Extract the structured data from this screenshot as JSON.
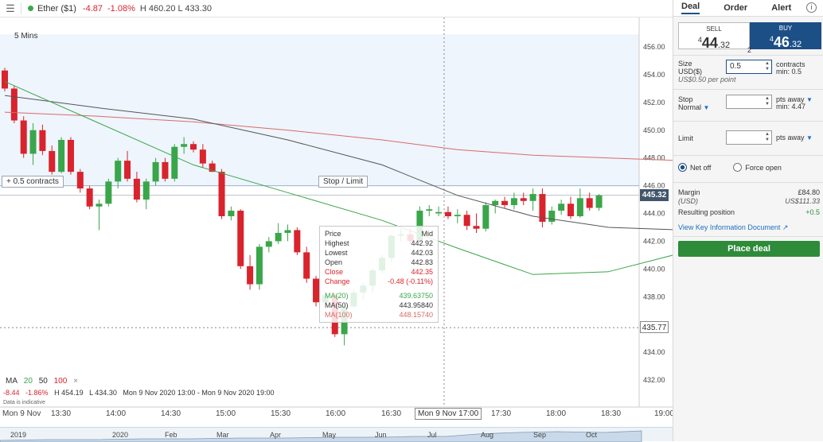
{
  "header": {
    "instrument": "Ether ($1)",
    "change": "-4.87",
    "change_pct": "-1.08%",
    "high_low": "H 460.20 L 433.30"
  },
  "chart": {
    "timeframe": "5 Mins",
    "position_pill": "+ 0.5 contracts",
    "stop_limit_pill": "Stop / Limit",
    "current_price_tag": "445.32",
    "cursor_price_tag": "435.77",
    "cursor_time_tag": "Mon 9 Nov 17:00",
    "colors": {
      "up": "#3aa64a",
      "down": "#d9232d",
      "ma20": "#3aa64a",
      "ma50": "#555555",
      "ma100": "#d96a6a"
    }
  },
  "chart_data": {
    "type": "candlestick",
    "y_ticks": [
      "456.00",
      "454.00",
      "452.00",
      "450.00",
      "448.00",
      "446.00",
      "444.00",
      "442.00",
      "440.00",
      "438.00",
      "436.00",
      "434.00",
      "432.00"
    ],
    "ylim": [
      431.5,
      457.0
    ],
    "x_ticks": [
      "Mon 9 Nov",
      "13:30",
      "14:00",
      "14:30",
      "15:00",
      "15:30",
      "16:00",
      "16:30",
      "17:30",
      "18:00",
      "18:30",
      "19:00"
    ],
    "candles": [
      [
        454.3,
        454.5,
        452.8,
        453.0
      ],
      [
        453.0,
        453.2,
        450.5,
        450.7
      ],
      [
        450.7,
        451.0,
        448.0,
        448.3
      ],
      [
        448.3,
        450.5,
        447.5,
        450.0
      ],
      [
        450.0,
        450.4,
        448.2,
        448.5
      ],
      [
        448.5,
        448.9,
        446.8,
        447.0
      ],
      [
        447.0,
        449.5,
        446.9,
        449.3
      ],
      [
        449.3,
        449.5,
        446.8,
        447.0
      ],
      [
        447.0,
        447.2,
        445.5,
        445.8
      ],
      [
        445.8,
        446.0,
        444.3,
        444.5
      ],
      [
        444.5,
        445.0,
        442.8,
        444.7
      ],
      [
        444.7,
        446.5,
        444.5,
        446.3
      ],
      [
        446.3,
        448.0,
        445.8,
        447.8
      ],
      [
        447.8,
        448.5,
        446.3,
        446.5
      ],
      [
        446.5,
        447.0,
        444.8,
        445.0
      ],
      [
        445.0,
        446.5,
        444.3,
        446.3
      ],
      [
        446.3,
        448.0,
        446.0,
        447.7
      ],
      [
        447.7,
        448.0,
        446.3,
        446.5
      ],
      [
        446.5,
        449.0,
        446.3,
        448.8
      ],
      [
        448.8,
        449.5,
        448.3,
        449.0
      ],
      [
        449.0,
        449.2,
        448.4,
        448.6
      ],
      [
        448.6,
        449.0,
        447.3,
        447.6
      ],
      [
        447.6,
        447.8,
        447.0,
        447.0
      ],
      [
        447.0,
        447.2,
        443.6,
        443.8
      ],
      [
        443.8,
        444.5,
        443.5,
        444.2
      ],
      [
        444.2,
        444.3,
        440.0,
        440.2
      ],
      [
        440.2,
        441.0,
        438.5,
        438.9
      ],
      [
        438.9,
        441.8,
        438.5,
        441.6
      ],
      [
        441.6,
        442.3,
        441.2,
        442.0
      ],
      [
        442.0,
        443.3,
        441.8,
        442.6
      ],
      [
        442.6,
        443.2,
        442.0,
        442.8
      ],
      [
        442.8,
        443.0,
        441.0,
        441.2
      ],
      [
        441.2,
        441.6,
        439.0,
        439.3
      ],
      [
        439.3,
        439.5,
        437.3,
        437.6
      ],
      [
        437.6,
        438.3,
        437.0,
        438.1
      ],
      [
        438.1,
        438.3,
        435.1,
        435.3
      ],
      [
        435.3,
        437.5,
        434.5,
        437.3
      ],
      [
        437.3,
        438.5,
        437.2,
        438.3
      ],
      [
        438.3,
        439.0,
        437.8,
        438.8
      ],
      [
        438.8,
        440.0,
        438.3,
        439.9
      ],
      [
        439.9,
        441.0,
        439.7,
        440.8
      ],
      [
        440.8,
        442.5,
        440.5,
        442.4
      ],
      [
        442.4,
        442.9,
        442.0,
        442.5
      ],
      [
        442.5,
        442.9,
        441.8,
        442.0
      ],
      [
        442.0,
        444.5,
        441.8,
        444.2
      ],
      [
        444.2,
        444.6,
        443.8,
        444.3
      ],
      [
        444.0,
        444.5,
        443.8,
        444.1
      ],
      [
        444.1,
        444.5,
        443.6,
        443.8
      ],
      [
        443.8,
        444.3,
        443.3,
        443.9
      ],
      [
        443.9,
        444.2,
        442.8,
        443.1
      ],
      [
        443.1,
        444.0,
        442.6,
        442.9
      ],
      [
        442.9,
        444.8,
        442.7,
        444.6
      ],
      [
        444.6,
        445.0,
        444.0,
        444.9
      ],
      [
        444.9,
        445.2,
        444.4,
        444.6
      ],
      [
        444.6,
        445.5,
        444.3,
        445.1
      ],
      [
        445.1,
        445.5,
        444.6,
        444.9
      ],
      [
        444.9,
        445.8,
        444.2,
        445.4
      ],
      [
        445.4,
        445.8,
        443.0,
        443.4
      ],
      [
        443.4,
        444.5,
        443.2,
        444.2
      ],
      [
        444.2,
        445.0,
        443.9,
        444.7
      ],
      [
        444.7,
        445.2,
        443.6,
        443.8
      ],
      [
        443.8,
        445.8,
        443.7,
        445.1
      ],
      [
        445.1,
        445.5,
        444.2,
        444.4
      ],
      [
        444.4,
        445.4,
        444.2,
        445.3
      ]
    ],
    "ma20": [
      [
        0,
        453.5
      ],
      [
        10,
        450.5
      ],
      [
        20,
        447.5
      ],
      [
        30,
        445.5
      ],
      [
        40,
        443.5
      ],
      [
        48,
        441.5
      ],
      [
        56,
        439.6
      ],
      [
        64,
        439.8
      ],
      [
        72,
        441.2
      ],
      [
        80,
        442.8
      ],
      [
        88,
        443.6
      ],
      [
        92,
        444.0
      ]
    ],
    "ma50": [
      [
        0,
        452.5
      ],
      [
        10,
        451.6
      ],
      [
        20,
        450.8
      ],
      [
        30,
        449.3
      ],
      [
        40,
        447.5
      ],
      [
        48,
        445.3
      ],
      [
        56,
        443.8
      ],
      [
        64,
        443.0
      ],
      [
        72,
        442.8
      ],
      [
        80,
        442.6
      ],
      [
        88,
        442.5
      ],
      [
        92,
        442.5
      ]
    ],
    "ma100": [
      [
        0,
        451.3
      ],
      [
        10,
        451.0
      ],
      [
        20,
        450.6
      ],
      [
        30,
        450.0
      ],
      [
        40,
        449.3
      ],
      [
        48,
        448.6
      ],
      [
        56,
        448.2
      ],
      [
        64,
        448.0
      ],
      [
        72,
        447.8
      ],
      [
        80,
        447.6
      ],
      [
        88,
        447.4
      ],
      [
        92,
        447.3
      ]
    ],
    "current_price": 445.32,
    "cursor_price": 435.77
  },
  "tooltip": {
    "price_label": "Price",
    "price_value": "Mid",
    "highest_label": "Highest",
    "highest_value": "442.92",
    "lowest_label": "Lowest",
    "lowest_value": "442.03",
    "open_label": "Open",
    "open_value": "442.83",
    "close_label": "Close",
    "close_value": "442.35",
    "change_label": "Change",
    "change_value": "-0.48 (-0.11%)",
    "ma20_label": "MA(20)",
    "ma20_value": "439.63750",
    "ma50_label": "MA(50)",
    "ma50_value": "443.95840",
    "ma100_label": "MA(100)",
    "ma100_value": "448.15740"
  },
  "ma_legend": {
    "label": "MA",
    "p20": "20",
    "p50": "50",
    "p100": "100",
    "close": "×"
  },
  "stats": {
    "change": "-8.44",
    "change_pct": "-1.86%",
    "high": "H 454.19",
    "low": "L 434.30",
    "range": "Mon 9 Nov 2020 13:00 - Mon 9 Nov 2020 19:00"
  },
  "indicative": "Data is indicative",
  "time_axis": [
    "Mon 9 Nov",
    "13:30",
    "14:00",
    "14:30",
    "15:00",
    "15:30",
    "16:00",
    "16:30",
    "Mon 9 Nov 17:00",
    "17:30",
    "18:00",
    "18:30",
    "19:00"
  ],
  "navigator": [
    "2019",
    "2020",
    "Feb",
    "Mar",
    "Apr",
    "May",
    "Jun",
    "Jul",
    "Aug",
    "Sep",
    "Oct"
  ],
  "panel": {
    "tabs": [
      "Deal",
      "Order",
      "Alert"
    ],
    "sell_label": "SELL",
    "sell_sup": "4",
    "sell_big": "44",
    "sell_small": ".32",
    "buy_label": "BUY",
    "buy_sup": "4",
    "buy_big": "46",
    "buy_small": ".32",
    "spread": "2",
    "size_label": "Size",
    "size_currency": "USD($)",
    "size_value": "0.5",
    "size_unit": "contracts",
    "size_min": "min: 0.5",
    "size_hint": "US$0.50 per point",
    "stop_label": "Stop",
    "stop_mode": "Normal",
    "stop_unit": "pts away",
    "stop_min": "min: 4.47",
    "limit_label": "Limit",
    "limit_unit": "pts away",
    "net_off": "Net off",
    "force_open": "Force open",
    "margin_label": "Margin",
    "margin_value": "£84.80",
    "margin_ccy_label": "(USD)",
    "margin_ccy_value": "US$111.33",
    "resulting_label": "Resulting position",
    "resulting_value": "+0.5",
    "kid_link": "View Key Information Document",
    "place_deal": "Place deal"
  }
}
